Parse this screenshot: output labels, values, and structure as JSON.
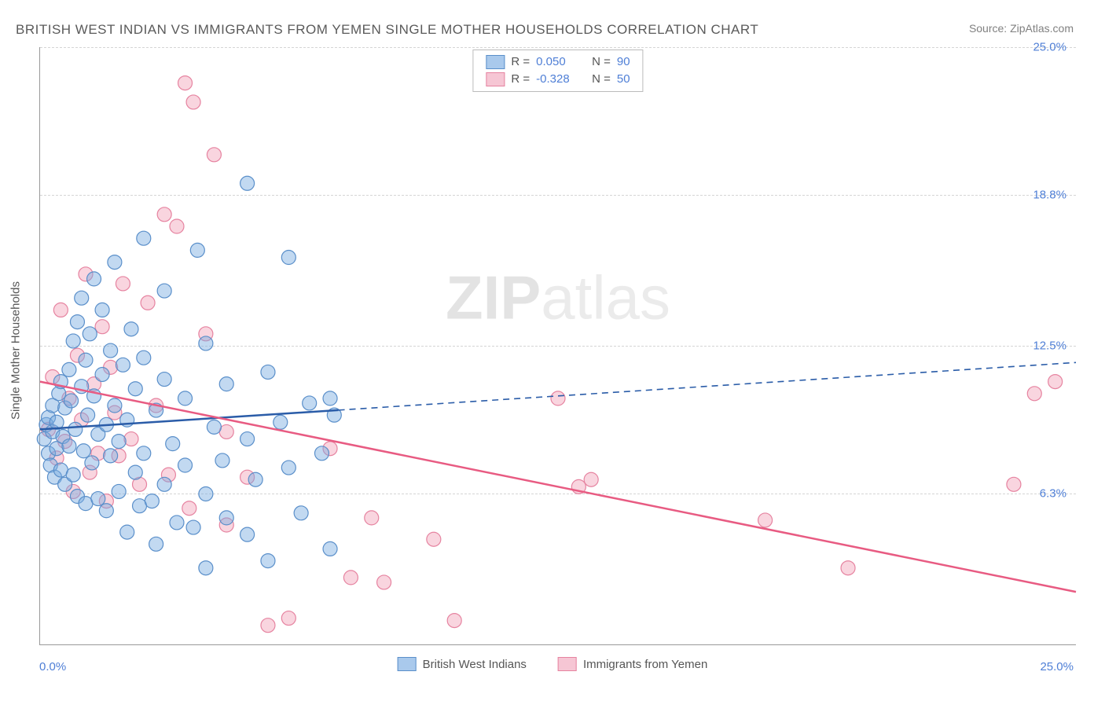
{
  "title": "BRITISH WEST INDIAN VS IMMIGRANTS FROM YEMEN SINGLE MOTHER HOUSEHOLDS CORRELATION CHART",
  "source": "Source: ZipAtlas.com",
  "ylabel": "Single Mother Households",
  "watermark_a": "ZIP",
  "watermark_b": "atlas",
  "chart": {
    "type": "scatter",
    "xlim": [
      0,
      25
    ],
    "ylim": [
      0,
      25
    ],
    "x_ticks": [
      "0.0%",
      "25.0%"
    ],
    "y_ticks": [
      {
        "v": 6.3,
        "label": "6.3%"
      },
      {
        "v": 12.5,
        "label": "12.5%"
      },
      {
        "v": 18.8,
        "label": "18.8%"
      },
      {
        "v": 25.0,
        "label": "25.0%"
      }
    ],
    "series": [
      {
        "name": "British West Indians",
        "color_fill": "rgba(120,170,225,0.45)",
        "color_stroke": "#5a8fca",
        "swatch_fill": "#a9c9ec",
        "swatch_border": "#5a8fca",
        "regression": {
          "R": "0.050",
          "N": "90",
          "y0": 9.0,
          "y1": 11.8,
          "dashed_from_x": 7.2,
          "color": "#2a5ca8"
        },
        "points": [
          [
            0.1,
            8.6
          ],
          [
            0.15,
            9.2
          ],
          [
            0.2,
            8.0
          ],
          [
            0.2,
            9.5
          ],
          [
            0.25,
            7.5
          ],
          [
            0.3,
            8.9
          ],
          [
            0.3,
            10.0
          ],
          [
            0.35,
            7.0
          ],
          [
            0.4,
            9.3
          ],
          [
            0.4,
            8.2
          ],
          [
            0.45,
            10.5
          ],
          [
            0.5,
            7.3
          ],
          [
            0.5,
            11.0
          ],
          [
            0.55,
            8.7
          ],
          [
            0.6,
            9.9
          ],
          [
            0.6,
            6.7
          ],
          [
            0.7,
            11.5
          ],
          [
            0.7,
            8.3
          ],
          [
            0.75,
            10.2
          ],
          [
            0.8,
            12.7
          ],
          [
            0.8,
            7.1
          ],
          [
            0.85,
            9.0
          ],
          [
            0.9,
            13.5
          ],
          [
            0.9,
            6.2
          ],
          [
            1.0,
            10.8
          ],
          [
            1.0,
            14.5
          ],
          [
            1.05,
            8.1
          ],
          [
            1.1,
            11.9
          ],
          [
            1.1,
            5.9
          ],
          [
            1.15,
            9.6
          ],
          [
            1.2,
            13.0
          ],
          [
            1.25,
            7.6
          ],
          [
            1.3,
            10.4
          ],
          [
            1.3,
            15.3
          ],
          [
            1.4,
            8.8
          ],
          [
            1.4,
            6.1
          ],
          [
            1.5,
            11.3
          ],
          [
            1.5,
            14.0
          ],
          [
            1.6,
            9.2
          ],
          [
            1.6,
            5.6
          ],
          [
            1.7,
            12.3
          ],
          [
            1.7,
            7.9
          ],
          [
            1.8,
            10.0
          ],
          [
            1.8,
            16.0
          ],
          [
            1.9,
            8.5
          ],
          [
            1.9,
            6.4
          ],
          [
            2.0,
            11.7
          ],
          [
            2.1,
            9.4
          ],
          [
            2.1,
            4.7
          ],
          [
            2.2,
            13.2
          ],
          [
            2.3,
            7.2
          ],
          [
            2.3,
            10.7
          ],
          [
            2.4,
            5.8
          ],
          [
            2.5,
            12.0
          ],
          [
            2.5,
            8.0
          ],
          [
            2.5,
            17.0
          ],
          [
            2.7,
            6.0
          ],
          [
            2.8,
            9.8
          ],
          [
            2.8,
            4.2
          ],
          [
            3.0,
            11.1
          ],
          [
            3.0,
            6.7
          ],
          [
            3.0,
            14.8
          ],
          [
            3.2,
            8.4
          ],
          [
            3.3,
            5.1
          ],
          [
            3.5,
            10.3
          ],
          [
            3.5,
            7.5
          ],
          [
            3.7,
            4.9
          ],
          [
            3.8,
            16.5
          ],
          [
            4.0,
            12.6
          ],
          [
            4.0,
            6.3
          ],
          [
            4.0,
            3.2
          ],
          [
            4.2,
            9.1
          ],
          [
            4.4,
            7.7
          ],
          [
            4.5,
            5.3
          ],
          [
            4.5,
            10.9
          ],
          [
            5.0,
            8.6
          ],
          [
            5.0,
            4.6
          ],
          [
            5.0,
            19.3
          ],
          [
            5.2,
            6.9
          ],
          [
            5.5,
            11.4
          ],
          [
            5.5,
            3.5
          ],
          [
            5.8,
            9.3
          ],
          [
            6.0,
            7.4
          ],
          [
            6.0,
            16.2
          ],
          [
            6.3,
            5.5
          ],
          [
            6.5,
            10.1
          ],
          [
            6.8,
            8.0
          ],
          [
            7.0,
            4.0
          ],
          [
            7.0,
            10.3
          ],
          [
            7.1,
            9.6
          ]
        ]
      },
      {
        "name": "Immigrants from Yemen",
        "color_fill": "rgba(240,150,175,0.40)",
        "color_stroke": "#e683a0",
        "swatch_fill": "#f6c6d4",
        "swatch_border": "#e683a0",
        "regression": {
          "R": "-0.328",
          "N": "50",
          "y0": 11.0,
          "y1": 2.2,
          "dashed_from_x": 25,
          "color": "#e85b82"
        },
        "points": [
          [
            0.2,
            9.0
          ],
          [
            0.3,
            11.2
          ],
          [
            0.4,
            7.8
          ],
          [
            0.5,
            14.0
          ],
          [
            0.6,
            8.5
          ],
          [
            0.7,
            10.3
          ],
          [
            0.8,
            6.4
          ],
          [
            0.9,
            12.1
          ],
          [
            1.0,
            9.4
          ],
          [
            1.1,
            15.5
          ],
          [
            1.2,
            7.2
          ],
          [
            1.3,
            10.9
          ],
          [
            1.4,
            8.0
          ],
          [
            1.5,
            13.3
          ],
          [
            1.6,
            6.0
          ],
          [
            1.7,
            11.6
          ],
          [
            1.8,
            9.7
          ],
          [
            1.9,
            7.9
          ],
          [
            2.0,
            15.1
          ],
          [
            2.2,
            8.6
          ],
          [
            2.4,
            6.7
          ],
          [
            2.6,
            14.3
          ],
          [
            2.8,
            10.0
          ],
          [
            3.0,
            18.0
          ],
          [
            3.1,
            7.1
          ],
          [
            3.3,
            17.5
          ],
          [
            3.5,
            23.5
          ],
          [
            3.6,
            5.7
          ],
          [
            3.7,
            22.7
          ],
          [
            4.0,
            13.0
          ],
          [
            4.2,
            20.5
          ],
          [
            4.5,
            8.9
          ],
          [
            4.5,
            5.0
          ],
          [
            5.0,
            7.0
          ],
          [
            5.5,
            0.8
          ],
          [
            6.0,
            1.1
          ],
          [
            7.0,
            8.2
          ],
          [
            7.5,
            2.8
          ],
          [
            8.0,
            5.3
          ],
          [
            8.3,
            2.6
          ],
          [
            9.5,
            4.4
          ],
          [
            10.0,
            1.0
          ],
          [
            12.5,
            10.3
          ],
          [
            13.0,
            6.6
          ],
          [
            13.3,
            6.9
          ],
          [
            17.5,
            5.2
          ],
          [
            19.5,
            3.2
          ],
          [
            23.5,
            6.7
          ],
          [
            24.0,
            10.5
          ],
          [
            24.5,
            11.0
          ]
        ]
      }
    ]
  },
  "legend_bottom": [
    {
      "label": "British West Indians"
    },
    {
      "label": "Immigrants from Yemen"
    }
  ]
}
